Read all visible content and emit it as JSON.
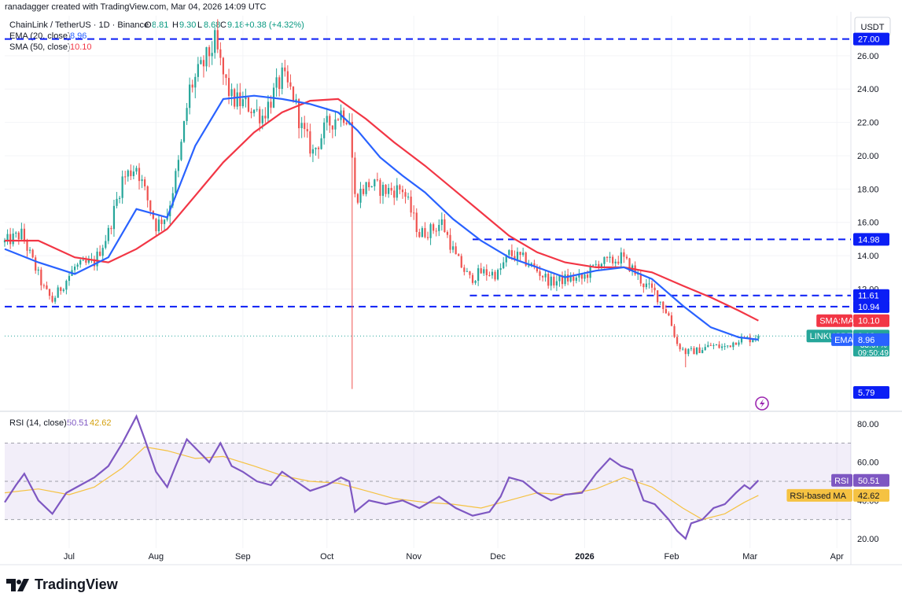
{
  "header": {
    "credit": "ranadagger created with TradingView.com, Mar 04, 2026 14:09 UTC",
    "symbol": "ChainLink / TetherUS · 1D · Binance",
    "ohlc": {
      "o_lbl": "O",
      "o": "8.81",
      "h_lbl": "H",
      "h": "9.30",
      "l_lbl": "L",
      "l": "8.68",
      "c_lbl": "C",
      "c": "9.18",
      "chg": "+0.38 (+4.32%)"
    },
    "ema_label": "EMA (20, close)",
    "ema_value": "8.96",
    "sma_label": "SMA (50, close)",
    "sma_value": "10.10",
    "rsi_label": "RSI (14, close)",
    "rsi_value": "50.51",
    "rsi_ma_value": "42.62"
  },
  "currency": "USDT",
  "brand": "TradingView",
  "colors": {
    "up": "#26a69a",
    "down": "#ef5350",
    "ema": "#2962ff",
    "sma": "#f23645",
    "rsi": "#7e57c2",
    "rsi_ma": "#f5c242",
    "level": "#0b1ef5"
  },
  "chart_data": [
    {
      "type": "candlestick",
      "title": "ChainLink / TetherUS · 1D · Binance",
      "ylim": [
        4.8,
        28.4
      ],
      "yticks": [
        "12.00",
        "14.00",
        "16.00",
        "18.00",
        "20.00",
        "22.00",
        "24.00",
        "26.00"
      ],
      "xticks": [
        "Jul",
        "Aug",
        "Sep",
        "Oct",
        "Nov",
        "Dec",
        "2026",
        "Feb",
        "Mar",
        "Apr"
      ],
      "x_range": [
        "2025-06-08",
        "2026-04-06"
      ],
      "price_tags": [
        {
          "value": 27.0,
          "label": "27.00",
          "kind": "level"
        },
        {
          "value": 14.98,
          "label": "14.98",
          "kind": "level"
        },
        {
          "value": 11.61,
          "label": "11.61",
          "kind": "level"
        },
        {
          "value": 10.94,
          "label": "10.94",
          "kind": "level"
        },
        {
          "value": 5.79,
          "label": "5.79",
          "kind": "level"
        },
        {
          "value": 10.1,
          "label": "10.10",
          "name": "SMA:MA",
          "kind": "sma"
        },
        {
          "value": 9.18,
          "label": "9.18",
          "name": "LINKUSDT",
          "sub1": "−33.67%",
          "sub2": "09:50:49",
          "kind": "last"
        },
        {
          "value": 8.96,
          "label": "8.96",
          "name": "EMA",
          "kind": "ema"
        }
      ],
      "levels": [
        {
          "value": 27.0,
          "from": "2025-06-08"
        },
        {
          "value": 14.98,
          "from": "2025-11-22"
        },
        {
          "value": 11.61,
          "from": "2025-11-21"
        },
        {
          "value": 10.94,
          "from": "2025-06-08"
        }
      ],
      "anchors": [
        [
          "2025-06-08",
          14.8
        ],
        [
          "2025-06-14",
          15.3
        ],
        [
          "2025-06-22",
          12.0
        ],
        [
          "2025-06-25",
          11.3
        ],
        [
          "2025-07-03",
          13.3
        ],
        [
          "2025-07-10",
          13.6
        ],
        [
          "2025-07-15",
          15.4
        ],
        [
          "2025-07-20",
          18.6
        ],
        [
          "2025-07-25",
          19.4
        ],
        [
          "2025-08-01",
          15.8
        ],
        [
          "2025-08-05",
          16.5
        ],
        [
          "2025-08-09",
          19.5
        ],
        [
          "2025-08-13",
          24.0
        ],
        [
          "2025-08-18",
          25.5
        ],
        [
          "2025-08-22",
          26.8
        ],
        [
          "2025-08-25",
          24.8
        ],
        [
          "2025-08-28",
          23.4
        ],
        [
          "2025-09-03",
          23.0
        ],
        [
          "2025-09-08",
          22.4
        ],
        [
          "2025-09-15",
          24.7
        ],
        [
          "2025-09-19",
          23.6
        ],
        [
          "2025-09-22",
          21.6
        ],
        [
          "2025-09-26",
          20.2
        ],
        [
          "2025-10-01",
          21.8
        ],
        [
          "2025-10-06",
          22.6
        ],
        [
          "2025-10-09",
          22.3
        ],
        [
          "2025-10-11",
          17.5
        ],
        [
          "2025-10-16",
          18.3
        ],
        [
          "2025-10-22",
          17.9
        ],
        [
          "2025-10-28",
          18.0
        ],
        [
          "2025-11-03",
          15.3
        ],
        [
          "2025-11-08",
          15.6
        ],
        [
          "2025-11-11",
          16.0
        ],
        [
          "2025-11-16",
          13.9
        ],
        [
          "2025-11-21",
          12.6
        ],
        [
          "2025-11-25",
          13.0
        ],
        [
          "2025-12-01",
          12.9
        ],
        [
          "2025-12-05",
          14.1
        ],
        [
          "2025-12-10",
          13.8
        ],
        [
          "2025-12-15",
          13.1
        ],
        [
          "2025-12-20",
          12.4
        ],
        [
          "2025-12-25",
          12.6
        ],
        [
          "2025-12-31",
          12.6
        ],
        [
          "2026-01-06",
          13.6
        ],
        [
          "2026-01-10",
          13.6
        ],
        [
          "2026-01-14",
          13.9
        ],
        [
          "2026-01-18",
          13.2
        ],
        [
          "2026-01-22",
          12.3
        ],
        [
          "2026-01-26",
          11.8
        ],
        [
          "2026-01-31",
          10.4
        ],
        [
          "2026-02-03",
          8.7
        ],
        [
          "2026-02-06",
          8.2
        ],
        [
          "2026-02-10",
          8.3
        ],
        [
          "2026-02-15",
          8.6
        ],
        [
          "2026-02-20",
          8.5
        ],
        [
          "2026-02-25",
          9.0
        ],
        [
          "2026-03-01",
          9.0
        ],
        [
          "2026-03-04",
          9.18
        ]
      ],
      "wick_extremes": [
        {
          "date": "2025-10-10",
          "low": 6.0
        },
        {
          "date": "2026-02-06",
          "low": 7.3
        },
        {
          "date": "2025-08-22",
          "high": 27.7
        }
      ],
      "sma50": [
        [
          "2025-06-08",
          14.9
        ],
        [
          "2025-06-20",
          14.9
        ],
        [
          "2025-07-03",
          13.9
        ],
        [
          "2025-07-15",
          13.6
        ],
        [
          "2025-07-25",
          14.4
        ],
        [
          "2025-08-05",
          15.6
        ],
        [
          "2025-08-15",
          17.6
        ],
        [
          "2025-08-25",
          19.6
        ],
        [
          "2025-09-05",
          21.4
        ],
        [
          "2025-09-15",
          22.6
        ],
        [
          "2025-09-25",
          23.3
        ],
        [
          "2025-10-05",
          23.4
        ],
        [
          "2025-10-15",
          22.2
        ],
        [
          "2025-10-25",
          20.8
        ],
        [
          "2025-11-05",
          19.4
        ],
        [
          "2025-11-15",
          18.0
        ],
        [
          "2025-11-25",
          16.6
        ],
        [
          "2025-12-05",
          15.2
        ],
        [
          "2025-12-15",
          14.2
        ],
        [
          "2025-12-25",
          13.6
        ],
        [
          "2026-01-05",
          13.3
        ],
        [
          "2026-01-15",
          13.3
        ],
        [
          "2026-01-25",
          13.0
        ],
        [
          "2026-02-05",
          12.2
        ],
        [
          "2026-02-15",
          11.5
        ],
        [
          "2026-02-25",
          10.7
        ],
        [
          "2026-03-04",
          10.1
        ]
      ],
      "ema20": [
        [
          "2025-06-08",
          14.4
        ],
        [
          "2025-06-20",
          13.6
        ],
        [
          "2025-07-03",
          12.9
        ],
        [
          "2025-07-15",
          13.9
        ],
        [
          "2025-07-25",
          16.8
        ],
        [
          "2025-08-05",
          16.3
        ],
        [
          "2025-08-15",
          20.6
        ],
        [
          "2025-08-25",
          23.4
        ],
        [
          "2025-09-05",
          23.6
        ],
        [
          "2025-09-15",
          23.4
        ],
        [
          "2025-09-25",
          23.1
        ],
        [
          "2025-10-05",
          22.6
        ],
        [
          "2025-10-12",
          21.5
        ],
        [
          "2025-10-20",
          19.9
        ],
        [
          "2025-10-28",
          18.8
        ],
        [
          "2025-11-05",
          17.8
        ],
        [
          "2025-11-15",
          16.2
        ],
        [
          "2025-11-25",
          14.9
        ],
        [
          "2025-12-05",
          13.9
        ],
        [
          "2025-12-15",
          13.3
        ],
        [
          "2025-12-25",
          12.7
        ],
        [
          "2026-01-05",
          13.1
        ],
        [
          "2026-01-15",
          13.3
        ],
        [
          "2026-01-25",
          12.6
        ],
        [
          "2026-02-05",
          11.0
        ],
        [
          "2026-02-15",
          9.7
        ],
        [
          "2026-02-25",
          9.1
        ],
        [
          "2026-03-04",
          8.96
        ]
      ]
    },
    {
      "type": "line",
      "title": "RSI (14, close)",
      "ylim": [
        15,
        85
      ],
      "yticks": [
        "20.00",
        "40.00",
        "60.00",
        "80.00"
      ],
      "bands": [
        30,
        70
      ],
      "midline": 50,
      "price_tags": [
        {
          "value": 50.51,
          "label": "50.51",
          "name": "RSI",
          "kind": "rsi"
        },
        {
          "value": 42.62,
          "label": "42.62",
          "name": "RSI-based MA",
          "kind": "rsi_ma"
        }
      ],
      "series": [
        {
          "name": "RSI",
          "points": [
            [
              "2025-06-08",
              39
            ],
            [
              "2025-06-12",
              48
            ],
            [
              "2025-06-15",
              54
            ],
            [
              "2025-06-20",
              40
            ],
            [
              "2025-06-25",
              33
            ],
            [
              "2025-06-30",
              44
            ],
            [
              "2025-07-05",
              48
            ],
            [
              "2025-07-10",
              52
            ],
            [
              "2025-07-15",
              58
            ],
            [
              "2025-07-20",
              70
            ],
            [
              "2025-07-25",
              84
            ],
            [
              "2025-07-28",
              72
            ],
            [
              "2025-08-01",
              55
            ],
            [
              "2025-08-05",
              47
            ],
            [
              "2025-08-08",
              58
            ],
            [
              "2025-08-12",
              72
            ],
            [
              "2025-08-16",
              66
            ],
            [
              "2025-08-20",
              60
            ],
            [
              "2025-08-24",
              70
            ],
            [
              "2025-08-28",
              58
            ],
            [
              "2025-09-01",
              55
            ],
            [
              "2025-09-06",
              50
            ],
            [
              "2025-09-11",
              48
            ],
            [
              "2025-09-15",
              55
            ],
            [
              "2025-09-20",
              50
            ],
            [
              "2025-09-25",
              45
            ],
            [
              "2025-10-01",
              48
            ],
            [
              "2025-10-06",
              52
            ],
            [
              "2025-10-09",
              50
            ],
            [
              "2025-10-11",
              34
            ],
            [
              "2025-10-16",
              40
            ],
            [
              "2025-10-22",
              38
            ],
            [
              "2025-10-28",
              40
            ],
            [
              "2025-11-03",
              36
            ],
            [
              "2025-11-10",
              42
            ],
            [
              "2025-11-16",
              36
            ],
            [
              "2025-11-22",
              32
            ],
            [
              "2025-11-28",
              34
            ],
            [
              "2025-12-02",
              42
            ],
            [
              "2025-12-05",
              52
            ],
            [
              "2025-12-10",
              50
            ],
            [
              "2025-12-15",
              44
            ],
            [
              "2025-12-20",
              40
            ],
            [
              "2025-12-25",
              43
            ],
            [
              "2025-12-31",
              44
            ],
            [
              "2026-01-05",
              54
            ],
            [
              "2026-01-10",
              62
            ],
            [
              "2026-01-14",
              58
            ],
            [
              "2026-01-18",
              56
            ],
            [
              "2026-01-22",
              40
            ],
            [
              "2026-01-26",
              38
            ],
            [
              "2026-01-31",
              30
            ],
            [
              "2026-02-03",
              24
            ],
            [
              "2026-02-06",
              20
            ],
            [
              "2026-02-08",
              28
            ],
            [
              "2026-02-12",
              30
            ],
            [
              "2026-02-16",
              36
            ],
            [
              "2026-02-20",
              38
            ],
            [
              "2026-02-24",
              44
            ],
            [
              "2026-02-27",
              48
            ],
            [
              "2026-03-01",
              46
            ],
            [
              "2026-03-04",
              50.51
            ]
          ]
        },
        {
          "name": "RSI-based MA",
          "points": [
            [
              "2025-06-08",
              44
            ],
            [
              "2025-06-20",
              46
            ],
            [
              "2025-07-01",
              43
            ],
            [
              "2025-07-10",
              47
            ],
            [
              "2025-07-20",
              57
            ],
            [
              "2025-07-28",
              68
            ],
            [
              "2025-08-05",
              66
            ],
            [
              "2025-08-15",
              62
            ],
            [
              "2025-08-25",
              63
            ],
            [
              "2025-09-05",
              58
            ],
            [
              "2025-09-15",
              53
            ],
            [
              "2025-09-25",
              50
            ],
            [
              "2025-10-05",
              49
            ],
            [
              "2025-10-15",
              45
            ],
            [
              "2025-10-25",
              41
            ],
            [
              "2025-11-05",
              39
            ],
            [
              "2025-11-15",
              38
            ],
            [
              "2025-11-25",
              36
            ],
            [
              "2025-12-05",
              40
            ],
            [
              "2025-12-15",
              44
            ],
            [
              "2025-12-25",
              43
            ],
            [
              "2026-01-05",
              46
            ],
            [
              "2026-01-15",
              52
            ],
            [
              "2026-01-25",
              47
            ],
            [
              "2026-02-05",
              36
            ],
            [
              "2026-02-12",
              30
            ],
            [
              "2026-02-20",
              33
            ],
            [
              "2026-02-27",
              39
            ],
            [
              "2026-03-04",
              42.62
            ]
          ]
        }
      ]
    }
  ]
}
